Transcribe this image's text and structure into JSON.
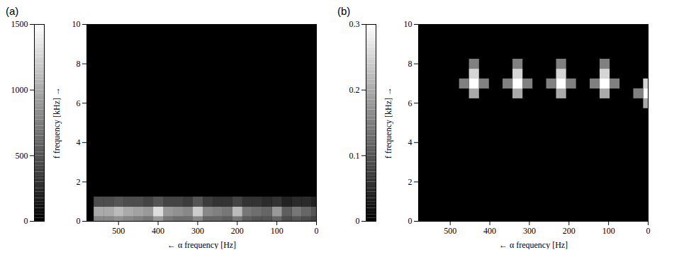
{
  "chart_data": [
    {
      "type": "heatmap",
      "title": "(a)",
      "x_label": "← α frequency [Hz]",
      "y_label": "f frequency [kHz] →",
      "xlim": [
        580,
        0
      ],
      "xticks": [
        500,
        400,
        300,
        200,
        100,
        0
      ],
      "ylim": [
        0,
        10
      ],
      "yticks": [
        0,
        2,
        4,
        6,
        8,
        10
      ],
      "color_range": [
        0,
        1500
      ],
      "color_ticks": [
        0,
        500,
        1000,
        1500
      ],
      "alpha": [
        0,
        25,
        50,
        75,
        100,
        125,
        150,
        175,
        200,
        225,
        250,
        275,
        300,
        325,
        350,
        375,
        400,
        425,
        450,
        475,
        500,
        525,
        550
      ],
      "rows": [
        {
          "f": 0,
          "values": [
            400,
            450,
            500,
            450,
            600,
            500,
            500,
            550,
            700,
            550,
            600,
            600,
            800,
            650,
            650,
            700,
            900,
            700,
            750,
            800,
            850,
            800,
            800
          ]
        },
        {
          "f": 0.5,
          "values": [
            500,
            600,
            700,
            550,
            900,
            600,
            650,
            700,
            1100,
            700,
            750,
            800,
            1200,
            800,
            850,
            900,
            1300,
            900,
            950,
            1000,
            1100,
            1000,
            1000
          ]
        },
        {
          "f": 1,
          "values": [
            200,
            250,
            250,
            200,
            300,
            250,
            300,
            300,
            400,
            300,
            300,
            350,
            500,
            350,
            400,
            400,
            500,
            400,
            450,
            450,
            500,
            450,
            450
          ]
        }
      ]
    },
    {
      "type": "heatmap",
      "title": "(b)",
      "x_label": "← α frequency [Hz]",
      "y_label": "f frequency [kHz] →",
      "xlim": [
        580,
        0
      ],
      "xticks": [
        500,
        400,
        300,
        200,
        100,
        0
      ],
      "ylim": [
        0,
        10
      ],
      "yticks": [
        0,
        2,
        4,
        6,
        8,
        10
      ],
      "color_range": [
        0,
        0.3
      ],
      "color_ticks": [
        0,
        0.1,
        0.2,
        0.3
      ],
      "cells": [
        {
          "alpha": 440,
          "f": 6.5,
          "value": 0.2
        },
        {
          "alpha": 440,
          "f": 7,
          "value": 0.3
        },
        {
          "alpha": 440,
          "f": 7.5,
          "value": 0.25
        },
        {
          "alpha": 440,
          "f": 8,
          "value": 0.15
        },
        {
          "alpha": 415,
          "f": 7,
          "value": 0.15
        },
        {
          "alpha": 465,
          "f": 7,
          "value": 0.15
        },
        {
          "alpha": 330,
          "f": 6.5,
          "value": 0.2
        },
        {
          "alpha": 330,
          "f": 7,
          "value": 0.3
        },
        {
          "alpha": 330,
          "f": 7.5,
          "value": 0.25
        },
        {
          "alpha": 330,
          "f": 8,
          "value": 0.15
        },
        {
          "alpha": 305,
          "f": 7,
          "value": 0.15
        },
        {
          "alpha": 355,
          "f": 7,
          "value": 0.15
        },
        {
          "alpha": 220,
          "f": 6.5,
          "value": 0.2
        },
        {
          "alpha": 220,
          "f": 7,
          "value": 0.3
        },
        {
          "alpha": 220,
          "f": 7.5,
          "value": 0.25
        },
        {
          "alpha": 220,
          "f": 8,
          "value": 0.15
        },
        {
          "alpha": 195,
          "f": 7,
          "value": 0.15
        },
        {
          "alpha": 245,
          "f": 7,
          "value": 0.15
        },
        {
          "alpha": 110,
          "f": 6.5,
          "value": 0.2
        },
        {
          "alpha": 110,
          "f": 7,
          "value": 0.3
        },
        {
          "alpha": 110,
          "f": 7.5,
          "value": 0.25
        },
        {
          "alpha": 110,
          "f": 8,
          "value": 0.15
        },
        {
          "alpha": 85,
          "f": 7,
          "value": 0.15
        },
        {
          "alpha": 135,
          "f": 7,
          "value": 0.15
        },
        {
          "alpha": 0,
          "f": 6,
          "value": 0.2
        },
        {
          "alpha": 0,
          "f": 6.5,
          "value": 0.3
        },
        {
          "alpha": 0,
          "f": 7,
          "value": 0.25
        },
        {
          "alpha": 25,
          "f": 6.5,
          "value": 0.15
        }
      ]
    }
  ]
}
